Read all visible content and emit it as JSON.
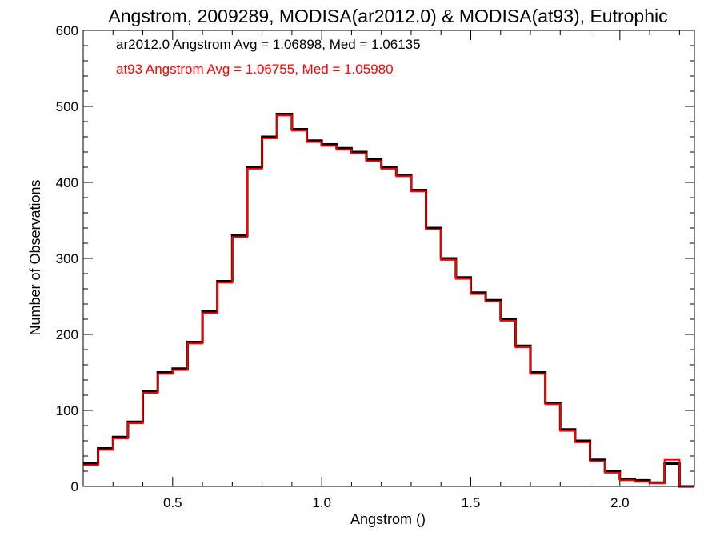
{
  "chart_data": {
    "type": "line",
    "step_histogram": true,
    "title": "Angstrom, 2009289, MODISA(ar2012.0) & MODISA(at93), Eutrophic",
    "xlabel": "Angstrom ()",
    "ylabel": "Number of Observations",
    "xlim": [
      0.2,
      2.25
    ],
    "ylim": [
      0,
      600
    ],
    "x_ticks": [
      0.5,
      1.0,
      1.5,
      2.0
    ],
    "x_tick_labels": [
      "0.5",
      "1.0",
      "1.5",
      "2.0"
    ],
    "y_ticks": [
      0,
      100,
      200,
      300,
      400,
      500,
      600
    ],
    "y_tick_labels": [
      "0",
      "100",
      "200",
      "300",
      "400",
      "500",
      "600"
    ],
    "annotations": [
      {
        "text": "ar2012.0 Angstrom Avg = 1.06898, Med = 1.06135",
        "color": "#000000"
      },
      {
        "text": "at93 Angstrom Avg = 1.06755, Med = 1.05980",
        "color": "#ff0000"
      }
    ],
    "series": [
      {
        "color": "#000000",
        "x": [
          0.2,
          0.25,
          0.3,
          0.35,
          0.4,
          0.45,
          0.5,
          0.55,
          0.6,
          0.65,
          0.7,
          0.75,
          0.8,
          0.85,
          0.9,
          0.95,
          1.0,
          1.05,
          1.1,
          1.15,
          1.2,
          1.25,
          1.3,
          1.35,
          1.4,
          1.45,
          1.5,
          1.55,
          1.6,
          1.65,
          1.7,
          1.75,
          1.8,
          1.85,
          1.9,
          1.95,
          2.0,
          2.05,
          2.1,
          2.15,
          2.2,
          2.25
        ],
        "y": [
          30,
          50,
          65,
          85,
          125,
          150,
          155,
          190,
          230,
          270,
          330,
          420,
          460,
          490,
          470,
          455,
          450,
          445,
          440,
          430,
          420,
          410,
          390,
          340,
          300,
          275,
          255,
          245,
          220,
          185,
          150,
          110,
          75,
          60,
          35,
          20,
          10,
          8,
          5,
          30,
          0,
          0
        ]
      },
      {
        "color": "#ff0000",
        "x": [
          0.2,
          0.25,
          0.3,
          0.35,
          0.4,
          0.45,
          0.5,
          0.55,
          0.6,
          0.65,
          0.7,
          0.75,
          0.8,
          0.85,
          0.9,
          0.95,
          1.0,
          1.05,
          1.1,
          1.15,
          1.2,
          1.25,
          1.3,
          1.35,
          1.4,
          1.45,
          1.5,
          1.55,
          1.6,
          1.65,
          1.7,
          1.75,
          1.8,
          1.85,
          1.9,
          1.95,
          2.0,
          2.05,
          2.1,
          2.15,
          2.2,
          2.25
        ],
        "y": [
          28,
          48,
          63,
          83,
          123,
          148,
          153,
          188,
          228,
          268,
          328,
          418,
          458,
          488,
          468,
          453,
          448,
          443,
          438,
          428,
          418,
          408,
          388,
          338,
          298,
          273,
          253,
          243,
          218,
          183,
          148,
          108,
          73,
          58,
          33,
          18,
          8,
          6,
          4,
          35,
          0,
          0
        ]
      }
    ]
  }
}
